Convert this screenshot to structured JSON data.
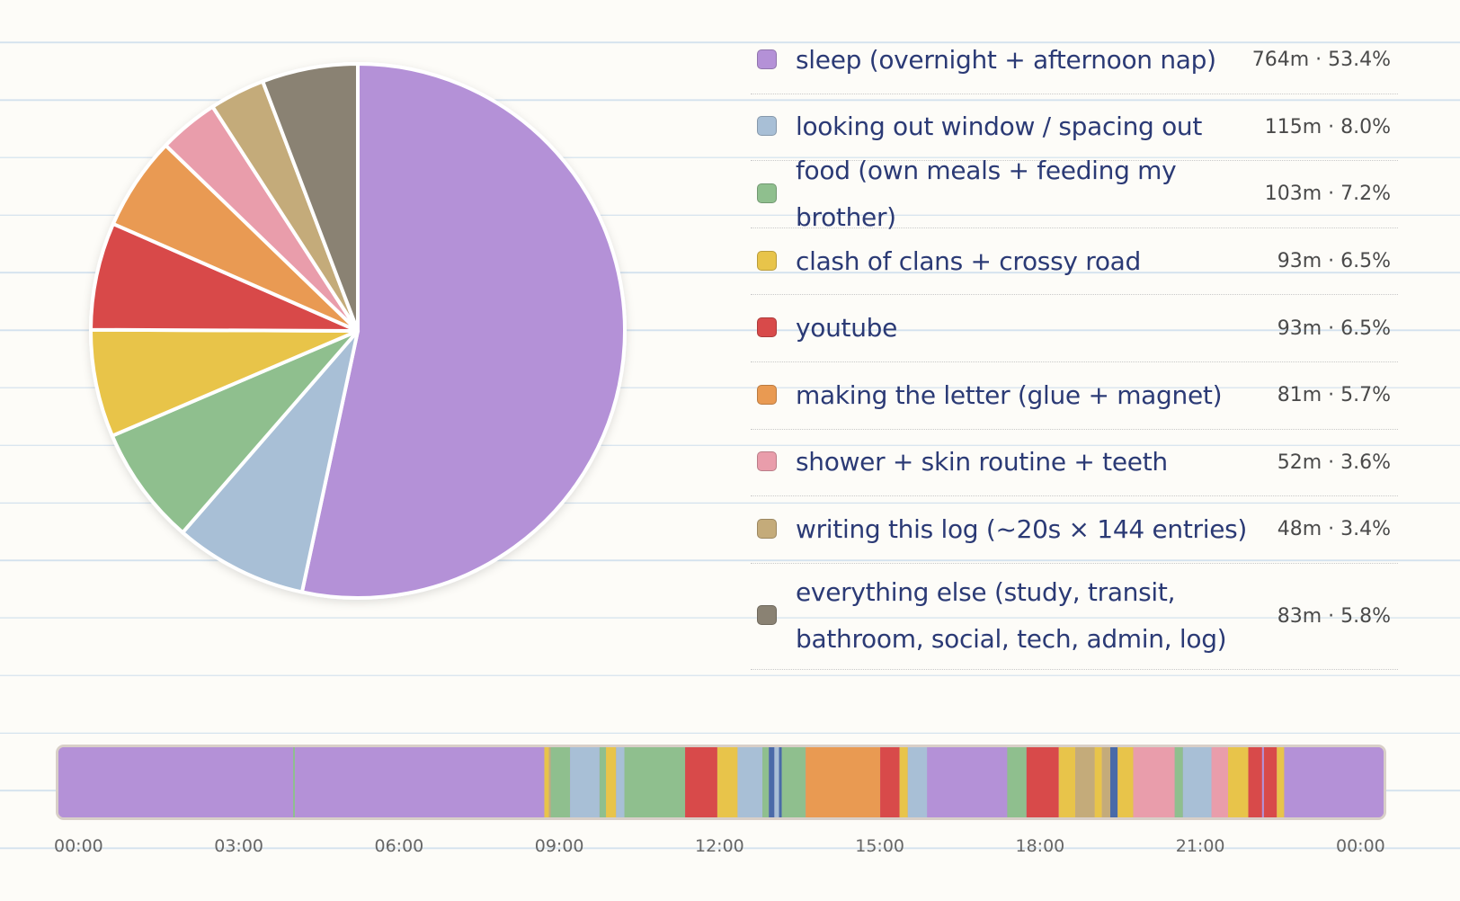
{
  "chart_data": [
    {
      "type": "pie",
      "colors": [
        "#b491d7",
        "#a8bfd6",
        "#8fbf8e",
        "#e8c44a",
        "#d84a4a",
        "#e99a52",
        "#e99dab",
        "#c4ab7a",
        "#8a8273"
      ],
      "slices": [
        {
          "label": "sleep (overnight + afternoon nap)",
          "minutes": 764,
          "percent": 53.4,
          "value_text": "764m · 53.4%"
        },
        {
          "label": "looking out window / spacing out",
          "minutes": 115,
          "percent": 8.0,
          "value_text": "115m · 8.0%"
        },
        {
          "label": "food (own meals + feeding my brother)",
          "minutes": 103,
          "percent": 7.2,
          "value_text": "103m · 7.2%"
        },
        {
          "label": "clash of clans + crossy road",
          "minutes": 93,
          "percent": 6.5,
          "value_text": "93m · 6.5%"
        },
        {
          "label": "youtube",
          "minutes": 93,
          "percent": 6.5,
          "value_text": "93m · 6.5%"
        },
        {
          "label": "making the letter (glue + magnet)",
          "minutes": 81,
          "percent": 5.7,
          "value_text": "81m · 5.7%"
        },
        {
          "label": "shower + skin routine + teeth",
          "minutes": 52,
          "percent": 3.6,
          "value_text": "52m · 3.6%"
        },
        {
          "label": "writing this log (~20s × 144 entries)",
          "minutes": 48,
          "percent": 3.4,
          "value_text": "48m · 3.4%"
        },
        {
          "label": "everything else (study, transit, bathroom, social, tech, admin, log)",
          "minutes": 83,
          "percent": 5.8,
          "value_text": "83m · 5.8%"
        }
      ]
    },
    {
      "type": "timeline",
      "x_range": [
        "00:00",
        "24:00"
      ],
      "tick_labels": [
        "00:00",
        "03:00",
        "06:00",
        "09:00",
        "12:00",
        "15:00",
        "18:00",
        "21:00",
        "00:00"
      ],
      "segments": [
        {
          "start": "00:00",
          "end": "04:15",
          "color": "#b491d7"
        },
        {
          "start": "04:15",
          "end": "04:17",
          "color": "#8fbf8e"
        },
        {
          "start": "04:17",
          "end": "08:48",
          "color": "#b491d7"
        },
        {
          "start": "08:48",
          "end": "08:53",
          "color": "#e8c44a"
        },
        {
          "start": "08:53",
          "end": "08:55",
          "color": "#c4ab7a"
        },
        {
          "start": "08:55",
          "end": "09:16",
          "color": "#8fbf8e"
        },
        {
          "start": "09:16",
          "end": "09:48",
          "color": "#a8bfd6"
        },
        {
          "start": "09:48",
          "end": "09:55",
          "color": "#8fbf8e"
        },
        {
          "start": "09:55",
          "end": "10:06",
          "color": "#e8c44a"
        },
        {
          "start": "10:06",
          "end": "10:15",
          "color": "#a8bfd6"
        },
        {
          "start": "10:15",
          "end": "11:21",
          "color": "#8fbf8e"
        },
        {
          "start": "11:21",
          "end": "11:56",
          "color": "#d84a4a"
        },
        {
          "start": "11:56",
          "end": "12:18",
          "color": "#e8c44a"
        },
        {
          "start": "12:18",
          "end": "12:45",
          "color": "#a8bfd6"
        },
        {
          "start": "12:45",
          "end": "12:52",
          "color": "#8fbf8e"
        },
        {
          "start": "12:52",
          "end": "12:58",
          "color": "#4a6aa8"
        },
        {
          "start": "12:58",
          "end": "13:03",
          "color": "#a8bfd6"
        },
        {
          "start": "13:03",
          "end": "13:06",
          "color": "#4a6aa8"
        },
        {
          "start": "13:06",
          "end": "13:32",
          "color": "#8fbf8e"
        },
        {
          "start": "13:32",
          "end": "14:53",
          "color": "#e99a52"
        },
        {
          "start": "14:53",
          "end": "15:14",
          "color": "#d84a4a"
        },
        {
          "start": "15:14",
          "end": "15:23",
          "color": "#e8c44a"
        },
        {
          "start": "15:23",
          "end": "15:44",
          "color": "#a8bfd6"
        },
        {
          "start": "15:44",
          "end": "17:11",
          "color": "#b491d7"
        },
        {
          "start": "17:11",
          "end": "17:32",
          "color": "#8fbf8e"
        },
        {
          "start": "17:32",
          "end": "18:07",
          "color": "#d84a4a"
        },
        {
          "start": "18:07",
          "end": "18:25",
          "color": "#e8c44a"
        },
        {
          "start": "18:25",
          "end": "18:46",
          "color": "#c4ab7a"
        },
        {
          "start": "18:46",
          "end": "18:54",
          "color": "#e8c44a"
        },
        {
          "start": "18:54",
          "end": "19:03",
          "color": "#c4ab7a"
        },
        {
          "start": "19:03",
          "end": "19:11",
          "color": "#4a6aa8"
        },
        {
          "start": "19:11",
          "end": "19:28",
          "color": "#e8c44a"
        },
        {
          "start": "19:28",
          "end": "20:13",
          "color": "#e99dab"
        },
        {
          "start": "20:13",
          "end": "20:22",
          "color": "#8fbf8e"
        },
        {
          "start": "20:22",
          "end": "20:53",
          "color": "#a8bfd6"
        },
        {
          "start": "20:53",
          "end": "21:11",
          "color": "#e99dab"
        },
        {
          "start": "21:11",
          "end": "21:33",
          "color": "#e8c44a"
        },
        {
          "start": "21:33",
          "end": "21:48",
          "color": "#d84a4a"
        },
        {
          "start": "21:48",
          "end": "21:50",
          "color": "#b491d7"
        },
        {
          "start": "21:50",
          "end": "22:04",
          "color": "#d84a4a"
        },
        {
          "start": "22:04",
          "end": "22:12",
          "color": "#e8c44a"
        },
        {
          "start": "22:12",
          "end": "24:00",
          "color": "#b491d7"
        }
      ]
    }
  ]
}
